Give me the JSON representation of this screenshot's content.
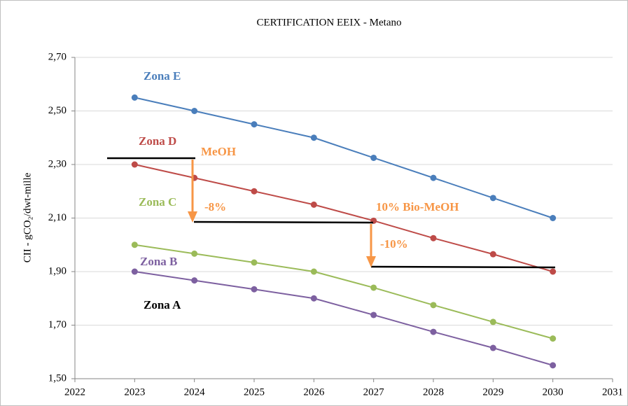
{
  "chart_data": {
    "type": "line",
    "title": "CERTIFICATION  EEIX - Metano",
    "y_label": "CII - gCO₂/dwt-mille",
    "x": [
      2023,
      2024,
      2025,
      2026,
      2027,
      2028,
      2029,
      2030
    ],
    "series": [
      {
        "name": "Zona E",
        "color": "#4a7ebb",
        "values": [
          2.55,
          2.5,
          2.45,
          2.4,
          2.325,
          2.25,
          2.175,
          2.1
        ]
      },
      {
        "name": "Zona D",
        "color": "#be4b48",
        "values": [
          2.3,
          2.25,
          2.2,
          2.15,
          2.09,
          2.025,
          1.965,
          1.9
        ]
      },
      {
        "name": "Zona C",
        "color": "#9bbb59",
        "values": [
          2.0,
          1.967,
          1.934,
          1.9,
          1.84,
          1.775,
          1.712,
          1.65
        ]
      },
      {
        "name": "Zona B",
        "color": "#7d60a0",
        "values": [
          1.9,
          1.867,
          1.834,
          1.8,
          1.738,
          1.675,
          1.615,
          1.55
        ]
      }
    ],
    "annotations": [
      "Zona A",
      "MeOH",
      "-8%",
      "10% Bio-MeOH",
      "-10%"
    ],
    "xlim": [
      2022,
      2031
    ],
    "xticks": [
      2022,
      2023,
      2024,
      2025,
      2026,
      2027,
      2028,
      2029,
      2030,
      2031
    ],
    "ylim": [
      1.5,
      2.7
    ],
    "yticks": [
      {
        "value": 1.5,
        "label": "1,50"
      },
      {
        "value": 1.7,
        "label": "1,70"
      },
      {
        "value": 1.9,
        "label": "1,90"
      },
      {
        "value": 2.1,
        "label": "2,10"
      },
      {
        "value": 2.3,
        "label": "2,30"
      },
      {
        "value": 2.5,
        "label": "2,50"
      },
      {
        "value": 2.7,
        "label": "2,70"
      }
    ],
    "grid": true
  }
}
